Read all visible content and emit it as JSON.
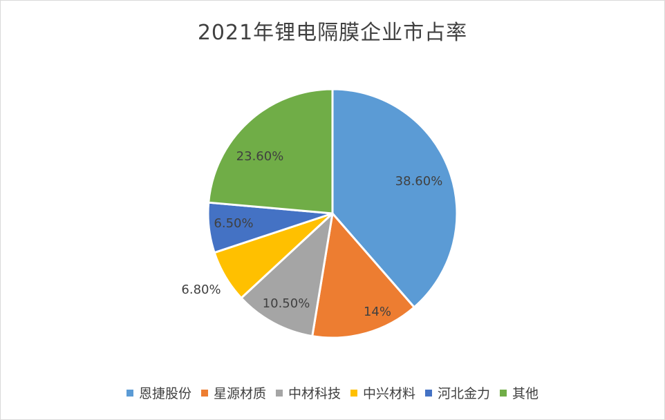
{
  "chart_data": {
    "type": "pie",
    "title": "2021年锂电隔膜企业市占率",
    "categories": [
      "恩捷股份",
      "星源材质",
      "中材科技",
      "中兴材料",
      "河北金力",
      "其他"
    ],
    "values": [
      38.6,
      14,
      10.5,
      6.8,
      6.5,
      23.6
    ],
    "data_labels": [
      "38.60%",
      "14%",
      "10.50%",
      "6.80%",
      "6.50%",
      "23.60%"
    ],
    "colors": [
      "#5b9bd5",
      "#ed7d31",
      "#a5a5a5",
      "#ffc000",
      "#4472c4",
      "#70ad47"
    ],
    "legend": "bottom"
  }
}
